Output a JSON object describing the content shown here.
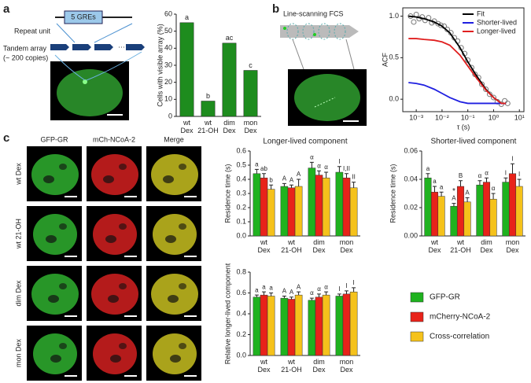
{
  "panel_labels": [
    "a",
    "b",
    "c"
  ],
  "schematic_a": {
    "repeat_unit": "Repeat unit",
    "gres": "5 GREs",
    "tandem_array": "Tandem array",
    "copies": "(~ 200 copies)",
    "ellipsis": "…"
  },
  "schematic_b": {
    "title": "Line-scanning FCS"
  },
  "image_grid": {
    "columns": [
      "GFP-GR",
      "mCh-NCoA-2",
      "Merge"
    ],
    "rows": [
      "wt Dex",
      "wt  21-OH",
      "dim Dex",
      "mon Dex"
    ]
  },
  "chart_data": [
    {
      "type": "bar",
      "ylabel": "Cells with visible array (%)",
      "categories": [
        [
          "wt",
          "Dex"
        ],
        [
          "wt",
          "21-OH"
        ],
        [
          "dim",
          "Dex"
        ],
        [
          "mon",
          "Dex"
        ]
      ],
      "values": [
        55,
        9,
        43,
        27
      ],
      "annotations": [
        "a",
        "b",
        "ac",
        "c"
      ],
      "color": "#1e8c1e",
      "ylim": [
        0,
        60
      ],
      "yticks": [
        0,
        10,
        20,
        30,
        40,
        50,
        60
      ]
    },
    {
      "type": "line",
      "ylabel": "ACF",
      "xlabel": "τ (s)",
      "log_x": true,
      "legend": "top-right",
      "xlim": [
        0.0003,
        15
      ],
      "xticks": [
        {
          "value": 0.001,
          "label": "10⁻³"
        },
        {
          "value": 0.01,
          "label": "10⁻²"
        },
        {
          "value": 0.1,
          "label": "10⁻¹"
        },
        {
          "value": 1,
          "label": "10⁰"
        },
        {
          "value": 10,
          "label": "10¹"
        }
      ],
      "ylim": [
        -0.15,
        1.1
      ],
      "yticks": [
        {
          "value": 0,
          "label": "0.0"
        },
        {
          "value": 0.5,
          "label": "0.5"
        },
        {
          "value": 1,
          "label": "1.0"
        }
      ],
      "x": [
        0.0005,
        0.001,
        0.002,
        0.005,
        0.01,
        0.02,
        0.05,
        0.1,
        0.2,
        0.5,
        1,
        2,
        3
      ],
      "series": [
        {
          "name": "Fit",
          "color": "#000000",
          "values": [
            1.0,
            0.99,
            0.97,
            0.93,
            0.88,
            0.8,
            0.62,
            0.45,
            0.3,
            0.12,
            0.02,
            -0.05,
            -0.05
          ]
        },
        {
          "name": "Shorter-lived",
          "color": "#1f1fe0",
          "values": [
            0.2,
            0.19,
            0.17,
            0.12,
            0.07,
            0.02,
            -0.03,
            -0.05,
            -0.05,
            -0.05,
            -0.05,
            -0.05,
            -0.05
          ]
        },
        {
          "name": "Longer-lived",
          "color": "#e01f1f",
          "values": [
            0.73,
            0.73,
            0.72,
            0.71,
            0.69,
            0.65,
            0.53,
            0.4,
            0.27,
            0.11,
            0.02,
            -0.05,
            -0.05
          ]
        }
      ],
      "points": {
        "color": "#777777",
        "x": [
          0.0006,
          0.0008,
          0.001,
          0.0013,
          0.0017,
          0.0022,
          0.003,
          0.004,
          0.005,
          0.007,
          0.009,
          0.012,
          0.016,
          0.022,
          0.03,
          0.04,
          0.055,
          0.075,
          0.1,
          0.14,
          0.19,
          0.26,
          0.35,
          0.5,
          0.7,
          1,
          1.4,
          2,
          2.7,
          3.5
        ],
        "values": [
          1.0,
          0.93,
          1.02,
          0.97,
          0.99,
          0.95,
          0.98,
          0.92,
          0.94,
          0.91,
          0.89,
          0.88,
          0.84,
          0.8,
          0.74,
          0.7,
          0.62,
          0.55,
          0.47,
          0.38,
          0.3,
          0.26,
          0.18,
          0.12,
          0.06,
          0.02,
          -0.03,
          -0.06,
          -0.02,
          -0.05
        ]
      }
    },
    {
      "type": "bar",
      "title": "Longer-lived component",
      "ylabel": "Residence time (s)",
      "legend": true,
      "categories": [
        [
          "wt",
          "Dex"
        ],
        [
          "wt",
          "21-OH"
        ],
        [
          "dim",
          "Dex"
        ],
        [
          "mon",
          "Dex"
        ]
      ],
      "ylim": [
        0,
        0.6
      ],
      "yticks": [
        {
          "value": 0,
          "label": "0.0"
        },
        {
          "value": 0.1,
          "label": "0.1"
        },
        {
          "value": 0.2,
          "label": "0.2"
        },
        {
          "value": 0.3,
          "label": "0.3"
        },
        {
          "value": 0.4,
          "label": "0.4"
        },
        {
          "value": 0.5,
          "label": "0.5"
        },
        {
          "value": 0.6,
          "label": "0.6"
        }
      ],
      "series": [
        {
          "name": "GFP-GR",
          "color": "#1fb21f",
          "values": [
            0.44,
            0.35,
            0.48,
            0.45
          ],
          "errors": [
            0.03,
            0.02,
            0.04,
            0.04
          ],
          "letters": [
            "a",
            "A",
            "α",
            "I"
          ]
        },
        {
          "name": "mCherry-NCoA-2",
          "color": "#e8231a",
          "values": [
            0.41,
            0.34,
            0.43,
            0.41
          ],
          "errors": [
            0.03,
            0.02,
            0.03,
            0.03
          ],
          "letters": [
            "ab",
            "A",
            "α",
            "I,II"
          ]
        },
        {
          "name": "Cross-correlation",
          "color": "#f5c21b",
          "values": [
            0.33,
            0.35,
            0.41,
            0.34
          ],
          "errors": [
            0.03,
            0.05,
            0.04,
            0.04
          ],
          "letters": [
            "b",
            "A",
            "α",
            "II"
          ]
        }
      ]
    },
    {
      "type": "bar",
      "title": "Shorter-lived component",
      "ylabel": "Residence time (s)",
      "categories": [
        [
          "wt",
          "Dex"
        ],
        [
          "wt",
          "21-OH"
        ],
        [
          "dim",
          "Dex"
        ],
        [
          "mon",
          "Dex"
        ]
      ],
      "ylim": [
        0,
        0.06
      ],
      "yticks": [
        {
          "value": 0,
          "label": "0.00"
        },
        {
          "value": 0.02,
          "label": "0.02"
        },
        {
          "value": 0.04,
          "label": "0.04"
        },
        {
          "value": 0.06,
          "label": "0.06"
        }
      ],
      "series": [
        {
          "name": "GFP-GR",
          "color": "#1fb21f",
          "values": [
            0.041,
            0.021,
            0.036,
            0.038
          ],
          "errors": [
            0.003,
            0.002,
            0.003,
            0.003
          ],
          "letters": [
            "a",
            "A",
            "α",
            "I"
          ],
          "stars": [
            null,
            "*",
            null,
            null
          ]
        },
        {
          "name": "mCherry-NCoA-2",
          "color": "#e8231a",
          "values": [
            0.031,
            0.035,
            0.038,
            0.044
          ],
          "errors": [
            0.004,
            0.004,
            0.003,
            0.007
          ],
          "letters": [
            "a",
            "B",
            "α",
            "I"
          ]
        },
        {
          "name": "Cross-correlation",
          "color": "#f5c21b",
          "values": [
            0.028,
            0.024,
            0.026,
            0.035
          ],
          "errors": [
            0.003,
            0.003,
            0.004,
            0.005
          ],
          "letters": [
            "a",
            "A",
            "α",
            "I"
          ]
        }
      ]
    },
    {
      "type": "bar",
      "ylabel": "Relative longer-lived component",
      "categories": [
        [
          "wt",
          "Dex"
        ],
        [
          "wt",
          "21-OH"
        ],
        [
          "dim",
          "Dex"
        ],
        [
          "mon",
          "Dex"
        ]
      ],
      "ylim": [
        0,
        0.8
      ],
      "yticks": [
        {
          "value": 0,
          "label": "0.0"
        },
        {
          "value": 0.2,
          "label": "0.2"
        },
        {
          "value": 0.4,
          "label": "0.4"
        },
        {
          "value": 0.6,
          "label": "0.6"
        },
        {
          "value": 0.8,
          "label": "0.8"
        }
      ],
      "series": [
        {
          "name": "GFP-GR",
          "color": "#1fb21f",
          "values": [
            0.56,
            0.55,
            0.53,
            0.57
          ],
          "errors": [
            0.02,
            0.02,
            0.02,
            0.02
          ],
          "letters": [
            "a",
            "A",
            "α",
            "I"
          ]
        },
        {
          "name": "mCherry-NCoA-2",
          "color": "#e8231a",
          "values": [
            0.58,
            0.54,
            0.56,
            0.59
          ],
          "errors": [
            0.03,
            0.02,
            0.03,
            0.03
          ],
          "letters": [
            "a",
            "A",
            "α",
            "I"
          ]
        },
        {
          "name": "Cross-correlation",
          "color": "#f5c21b",
          "values": [
            0.57,
            0.58,
            0.58,
            0.61
          ],
          "errors": [
            0.03,
            0.03,
            0.03,
            0.04
          ],
          "letters": [
            "a",
            "A",
            "α",
            "I"
          ]
        }
      ]
    }
  ]
}
